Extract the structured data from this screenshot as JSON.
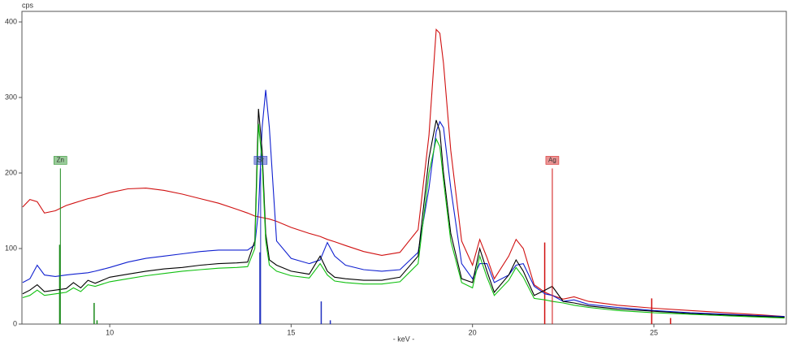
{
  "chart_data": {
    "type": "line",
    "y_label": "cps",
    "x_label": "- keV -",
    "xlim": [
      7.58,
      28.65
    ],
    "ylim": [
      0,
      414
    ],
    "xticks": [
      10,
      15,
      20,
      25
    ],
    "yticks": [
      0,
      100,
      200,
      300,
      400
    ],
    "x": [
      7.6,
      7.8,
      8.0,
      8.2,
      8.5,
      8.8,
      9.0,
      9.2,
      9.4,
      9.6,
      10,
      10.5,
      11,
      11.5,
      12,
      12.5,
      13,
      13.5,
      13.8,
      14.0,
      14.1,
      14.2,
      14.3,
      14.4,
      14.6,
      15,
      15.5,
      15.8,
      16.0,
      16.2,
      16.5,
      17,
      17.5,
      18,
      18.5,
      18.8,
      19.0,
      19.1,
      19.2,
      19.4,
      19.7,
      20.0,
      20.2,
      20.4,
      20.6,
      21.0,
      21.2,
      21.4,
      21.7,
      22.0,
      22.2,
      22.5,
      22.8,
      23.2,
      24,
      25,
      26,
      27,
      28,
      28.6
    ],
    "series": [
      {
        "color": "#d01010",
        "values": [
          155,
          165,
          162,
          147,
          150,
          157,
          160,
          163,
          166,
          168,
          174,
          179,
          180,
          177,
          172,
          166,
          160,
          152,
          147,
          143,
          142,
          141,
          140,
          139,
          136,
          128,
          120,
          116,
          112,
          109,
          104,
          96,
          91,
          95,
          125,
          250,
          390,
          385,
          345,
          230,
          110,
          78,
          112,
          88,
          60,
          90,
          112,
          100,
          52,
          42,
          38,
          33,
          36,
          30,
          25,
          21,
          18,
          15,
          12,
          10
        ]
      },
      {
        "color": "#1020d0",
        "values": [
          55,
          60,
          78,
          65,
          63,
          65,
          66,
          67,
          68,
          70,
          75,
          82,
          87,
          90,
          93,
          96,
          98,
          98,
          98,
          105,
          150,
          260,
          310,
          260,
          110,
          87,
          80,
          85,
          108,
          90,
          78,
          72,
          70,
          72,
          95,
          180,
          255,
          268,
          260,
          180,
          80,
          60,
          80,
          80,
          55,
          65,
          78,
          80,
          50,
          40,
          38,
          30,
          32,
          26,
          22,
          18,
          15,
          13,
          11,
          10
        ]
      },
      {
        "color": "#000000",
        "values": [
          40,
          45,
          52,
          43,
          45,
          47,
          55,
          48,
          58,
          54,
          62,
          66,
          70,
          73,
          75,
          78,
          80,
          81,
          82,
          110,
          285,
          230,
          120,
          85,
          78,
          70,
          66,
          90,
          70,
          62,
          60,
          58,
          58,
          62,
          90,
          220,
          270,
          255,
          200,
          120,
          60,
          55,
          100,
          70,
          42,
          65,
          85,
          70,
          38,
          45,
          50,
          30,
          28,
          24,
          20,
          17,
          14,
          12,
          10,
          9
        ]
      },
      {
        "color": "#10c010",
        "values": [
          35,
          38,
          45,
          38,
          40,
          42,
          48,
          43,
          52,
          50,
          56,
          60,
          64,
          67,
          70,
          72,
          74,
          75,
          76,
          100,
          265,
          215,
          110,
          78,
          70,
          64,
          61,
          80,
          65,
          57,
          55,
          53,
          53,
          56,
          80,
          200,
          245,
          235,
          190,
          110,
          55,
          48,
          90,
          62,
          38,
          58,
          75,
          62,
          34,
          32,
          30,
          28,
          25,
          22,
          18,
          15,
          13,
          11,
          9,
          8
        ]
      }
    ],
    "markers": [
      {
        "label": "Zn",
        "color": "#1a8a1a",
        "x": 8.64,
        "height": 206
      },
      {
        "label": "Sr",
        "color": "#2030c0",
        "x": 14.16,
        "height": 206
      },
      {
        "label": "Ag",
        "color": "#d01010",
        "x": 22.2,
        "height": 206
      }
    ],
    "lines": [
      {
        "color": "#1a8a1a",
        "x": 8.62,
        "height": 105
      },
      {
        "color": "#1a8a1a",
        "x": 9.57,
        "height": 28
      },
      {
        "color": "#1a8a1a",
        "x": 9.65,
        "height": 5
      },
      {
        "color": "#2030c0",
        "x": 14.14,
        "height": 95
      },
      {
        "color": "#2030c0",
        "x": 15.83,
        "height": 30
      },
      {
        "color": "#2030c0",
        "x": 16.08,
        "height": 5
      },
      {
        "color": "#d01010",
        "x": 21.99,
        "height": 108
      },
      {
        "color": "#d01010",
        "x": 24.94,
        "height": 34
      },
      {
        "color": "#d01010",
        "x": 25.46,
        "height": 8
      }
    ]
  }
}
